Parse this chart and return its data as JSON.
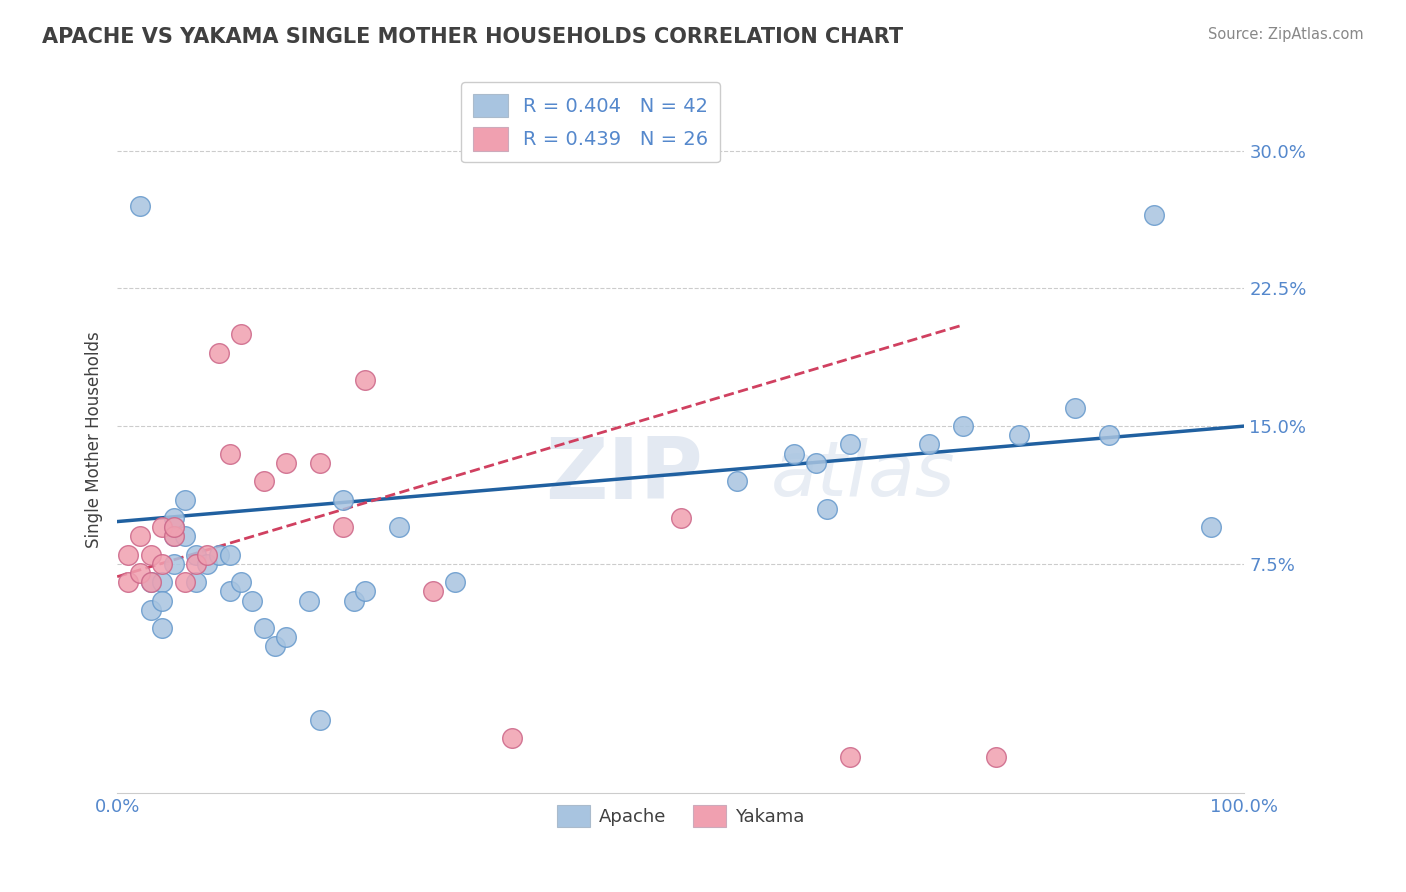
{
  "title": "APACHE VS YAKAMA SINGLE MOTHER HOUSEHOLDS CORRELATION CHART",
  "source": "Source: ZipAtlas.com",
  "xlabel": "",
  "ylabel": "Single Mother Households",
  "apache_R": 0.404,
  "apache_N": 42,
  "yakama_R": 0.439,
  "yakama_N": 26,
  "apache_color": "#a8c4e0",
  "apache_line_color": "#2060a0",
  "yakama_color": "#f0a0b0",
  "yakama_line_color": "#d04060",
  "watermark_zip": "ZIP",
  "watermark_atlas": "atlas",
  "xlim": [
    0.0,
    1.0
  ],
  "ylim": [
    -0.05,
    0.335
  ],
  "yticks": [
    0.075,
    0.15,
    0.225,
    0.3
  ],
  "ytick_labels": [
    "7.5%",
    "15.0%",
    "22.5%",
    "30.0%"
  ],
  "xticks": [
    0.0,
    1.0
  ],
  "xtick_labels": [
    "0.0%",
    "100.0%"
  ],
  "apache_x": [
    0.02,
    0.03,
    0.03,
    0.04,
    0.04,
    0.04,
    0.05,
    0.05,
    0.05,
    0.05,
    0.06,
    0.06,
    0.07,
    0.07,
    0.08,
    0.09,
    0.1,
    0.1,
    0.11,
    0.12,
    0.13,
    0.14,
    0.15,
    0.17,
    0.18,
    0.2,
    0.21,
    0.22,
    0.25,
    0.3,
    0.55,
    0.6,
    0.62,
    0.63,
    0.65,
    0.72,
    0.75,
    0.8,
    0.85,
    0.88,
    0.92,
    0.97
  ],
  "apache_y": [
    0.27,
    0.065,
    0.05,
    0.065,
    0.04,
    0.055,
    0.075,
    0.09,
    0.095,
    0.1,
    0.09,
    0.11,
    0.065,
    0.08,
    0.075,
    0.08,
    0.06,
    0.08,
    0.065,
    0.055,
    0.04,
    0.03,
    0.035,
    0.055,
    -0.01,
    0.11,
    0.055,
    0.06,
    0.095,
    0.065,
    0.12,
    0.135,
    0.13,
    0.105,
    0.14,
    0.14,
    0.15,
    0.145,
    0.16,
    0.145,
    0.265,
    0.095
  ],
  "yakama_x": [
    0.01,
    0.01,
    0.02,
    0.02,
    0.03,
    0.03,
    0.04,
    0.04,
    0.05,
    0.05,
    0.06,
    0.07,
    0.08,
    0.09,
    0.1,
    0.11,
    0.13,
    0.15,
    0.18,
    0.2,
    0.22,
    0.28,
    0.35,
    0.5,
    0.65,
    0.78
  ],
  "yakama_y": [
    0.08,
    0.065,
    0.07,
    0.09,
    0.08,
    0.065,
    0.075,
    0.095,
    0.09,
    0.095,
    0.065,
    0.075,
    0.08,
    0.19,
    0.135,
    0.2,
    0.12,
    0.13,
    0.13,
    0.095,
    0.175,
    0.06,
    -0.02,
    0.1,
    -0.03,
    -0.03
  ],
  "apache_trend_x0": 0.0,
  "apache_trend_y0": 0.098,
  "apache_trend_x1": 1.0,
  "apache_trend_y1": 0.15,
  "yakama_trend_x0": 0.0,
  "yakama_trend_y0": 0.068,
  "yakama_trend_x1": 0.75,
  "yakama_trend_y1": 0.205,
  "grid_color": "#cccccc",
  "background_color": "#ffffff",
  "title_color": "#404040",
  "axis_color": "#5588cc",
  "legend_text_color": "#5588cc"
}
